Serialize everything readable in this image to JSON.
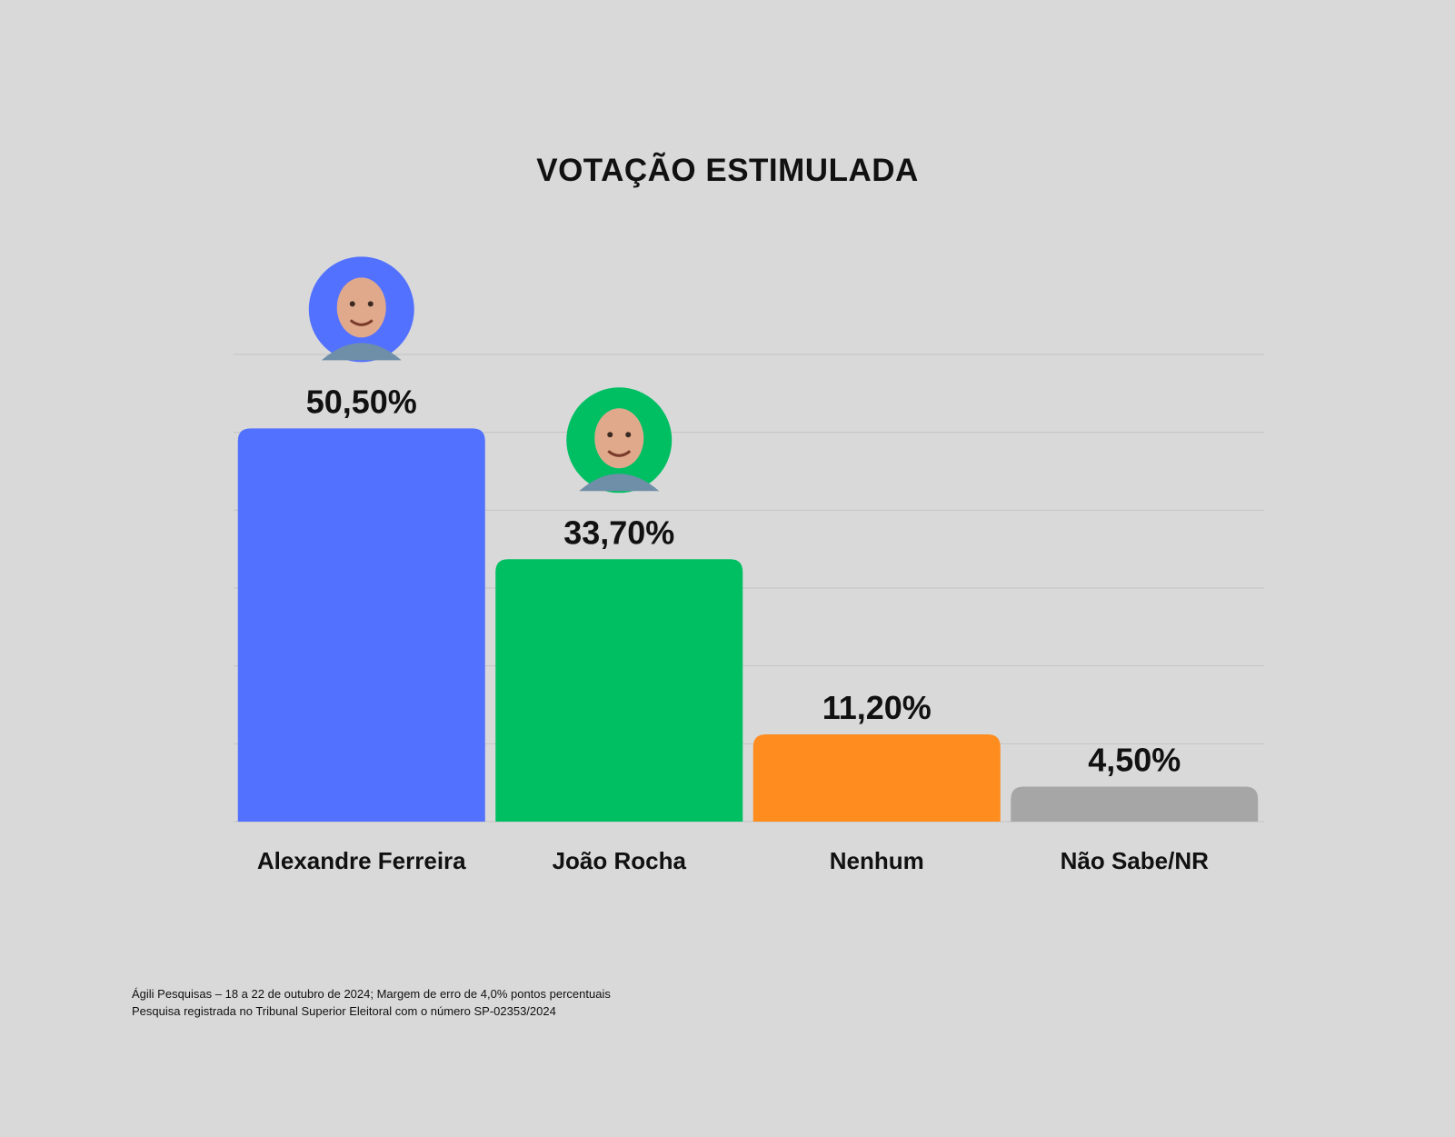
{
  "chart_data": {
    "type": "bar",
    "title": "VOTAÇÃO ESTIMULADA",
    "categories": [
      "Alexandre Ferreira",
      "João Rocha",
      "Nenhum",
      "Não Sabe/NR"
    ],
    "values": [
      50.5,
      33.7,
      11.2,
      4.5
    ],
    "value_labels": [
      "50,50%",
      "33,70%",
      "11,20%",
      "4,50%"
    ],
    "colors": [
      "#5271ff",
      "#00bf63",
      "#ff8c1f",
      "#a6a6a6"
    ],
    "avatars": [
      {
        "category": "Alexandre Ferreira",
        "ring_color": "#5271ff"
      },
      {
        "category": "João Rocha",
        "ring_color": "#00bf63"
      }
    ],
    "ylim": [
      0,
      60
    ],
    "grid": true,
    "xlabel": "",
    "ylabel": ""
  },
  "footnotes": [
    "Ágili Pesquisas – 18 a 22 de outubro de 2024; Margem de erro de 4,0% pontos percentuais",
    "Pesquisa registrada no Tribunal Superior Eleitoral com o número SP-02353/2024"
  ]
}
